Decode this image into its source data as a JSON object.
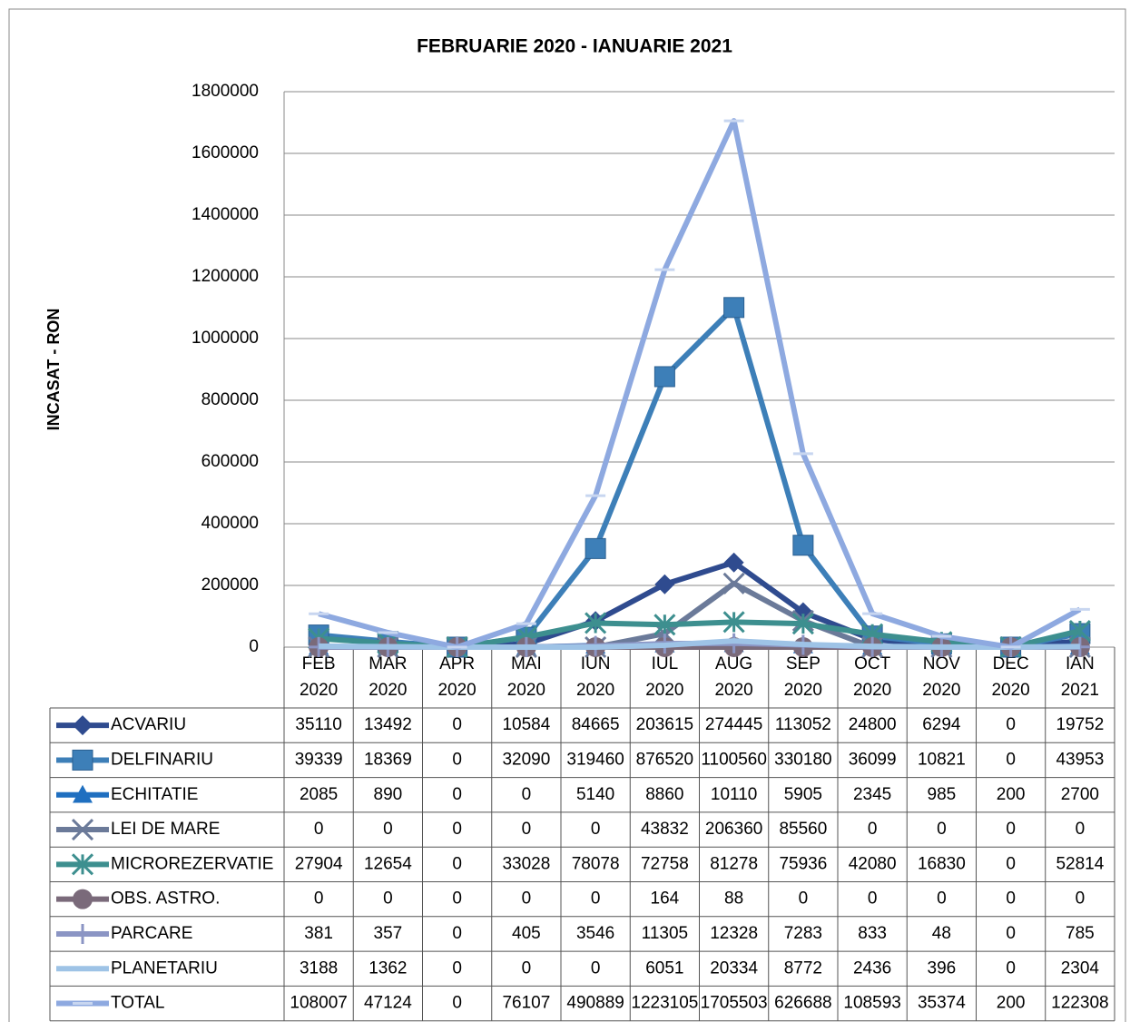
{
  "chart_data": {
    "type": "line",
    "title": "FEBRUARIE 2020 - IANUARIE 2021",
    "y_label": "INCASAT - RON",
    "categories": [
      "FEB 2020",
      "MAR 2020",
      "APR 2020",
      "MAI 2020",
      "IUN 2020",
      "IUL 2020",
      "AUG 2020",
      "SEP 2020",
      "OCT 2020",
      "NOV 2020",
      "DEC 2020",
      "IAN 2021"
    ],
    "ylim": [
      0,
      1800000
    ],
    "yticks": [
      0,
      200000,
      400000,
      600000,
      800000,
      1000000,
      1200000,
      1400000,
      1600000,
      1800000
    ],
    "grid": true,
    "data_table": true,
    "series": [
      {
        "name": "ACVARIU",
        "color": "#2f4b8f",
        "marker": "diamond",
        "values": [
          35110,
          13492,
          0,
          10584,
          84665,
          203615,
          274445,
          113052,
          24800,
          6294,
          0,
          19752
        ]
      },
      {
        "name": "DELFINARIU",
        "color": "#3d7fb8",
        "marker": "square",
        "values": [
          39339,
          18369,
          0,
          32090,
          319460,
          876520,
          1100560,
          330180,
          36099,
          10821,
          0,
          43953
        ]
      },
      {
        "name": "ECHITATIE",
        "color": "#1f6fc0",
        "marker": "triangle",
        "values": [
          2085,
          890,
          0,
          0,
          5140,
          8860,
          10110,
          5905,
          2345,
          985,
          200,
          2700
        ]
      },
      {
        "name": "LEI DE MARE",
        "color": "#6b7a99",
        "marker": "x",
        "values": [
          0,
          0,
          0,
          0,
          0,
          43832,
          206360,
          85560,
          0,
          0,
          0,
          0
        ]
      },
      {
        "name": "MICROREZERVATIE",
        "color": "#3d8f8f",
        "marker": "star",
        "values": [
          27904,
          12654,
          0,
          33028,
          78078,
          72758,
          81278,
          75936,
          42080,
          16830,
          0,
          52814
        ]
      },
      {
        "name": "OBS. ASTRO.",
        "color": "#7a6a7a",
        "marker": "circle",
        "values": [
          0,
          0,
          0,
          0,
          0,
          164,
          88,
          0,
          0,
          0,
          0,
          0
        ]
      },
      {
        "name": "PARCARE",
        "color": "#8b95c4",
        "marker": "plus",
        "values": [
          381,
          357,
          0,
          405,
          3546,
          11305,
          12328,
          7283,
          833,
          48,
          0,
          785
        ]
      },
      {
        "name": "PLANETARIU",
        "color": "#9ec3e6",
        "marker": "none",
        "values": [
          3188,
          1362,
          0,
          0,
          0,
          6051,
          20334,
          8772,
          2436,
          396,
          0,
          2304
        ]
      },
      {
        "name": "TOTAL",
        "color": "#8ea9e0",
        "marker": "dash",
        "values": [
          108007,
          47124,
          0,
          76107,
          490889,
          1223105,
          1705503,
          626688,
          108593,
          35374,
          200,
          122308
        ]
      }
    ]
  }
}
